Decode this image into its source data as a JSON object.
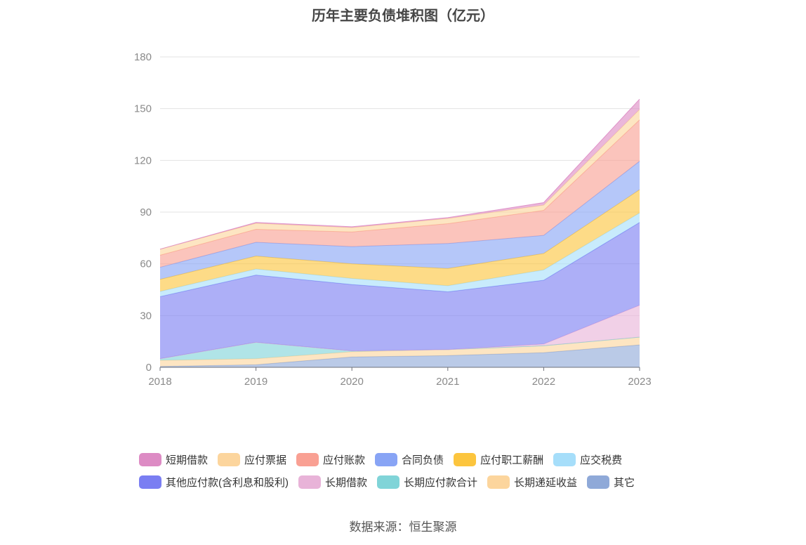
{
  "title": "历年主要负债堆积图（亿元）",
  "source": "数据来源：恒生聚源",
  "chart_data": {
    "type": "area",
    "stacked": true,
    "title": "历年主要负债堆积图（亿元）",
    "x": [
      "2018",
      "2019",
      "2020",
      "2021",
      "2022",
      "2023"
    ],
    "ylim": [
      0,
      180
    ],
    "yticks": [
      0,
      30,
      60,
      90,
      120,
      150,
      180
    ],
    "grid": true,
    "legend_position": "bottom",
    "series": [
      {
        "name": "其它",
        "color": "#8fa9d8",
        "values": [
          0.5,
          1.5,
          6.0,
          6.8,
          8.5,
          13.0
        ]
      },
      {
        "name": "长期递延收益",
        "color": "#fcd59d",
        "values": [
          3.5,
          3.5,
          3.0,
          3.5,
          4.0,
          4.5
        ]
      },
      {
        "name": "长期应付款合计",
        "color": "#80d4d8",
        "values": [
          1.0,
          9.5,
          0.5,
          0.0,
          0.0,
          0.0
        ]
      },
      {
        "name": "长期借款",
        "color": "#e8b3d8",
        "values": [
          0.0,
          0.0,
          0.0,
          0.0,
          1.0,
          18.5
        ]
      },
      {
        "name": "其他应付款(含利息和股利)",
        "color": "#7a7ef2",
        "values": [
          36.0,
          39.0,
          38.5,
          33.5,
          37.0,
          48.0
        ]
      },
      {
        "name": "应交税费",
        "color": "#a6defa",
        "values": [
          3.0,
          3.5,
          3.5,
          3.5,
          6.0,
          5.5
        ]
      },
      {
        "name": "应付职工薪酬",
        "color": "#fcc53e",
        "values": [
          7.0,
          7.5,
          8.5,
          10.0,
          9.5,
          13.5
        ]
      },
      {
        "name": "合同负债",
        "color": "#88a4f5",
        "values": [
          7.0,
          8.0,
          10.0,
          14.5,
          10.5,
          16.5
        ]
      },
      {
        "name": "应付账款",
        "color": "#f9a093",
        "values": [
          7.0,
          7.5,
          8.5,
          11.5,
          14.5,
          24.0
        ]
      },
      {
        "name": "应付票据",
        "color": "#fcd59d",
        "values": [
          3.5,
          3.5,
          2.5,
          3.0,
          3.0,
          6.0
        ]
      },
      {
        "name": "短期借款",
        "color": "#dd8bc4",
        "values": [
          0.0,
          0.5,
          0.5,
          0.5,
          1.5,
          6.0
        ]
      }
    ],
    "legend_order": [
      "短期借款",
      "应付票据",
      "应付账款",
      "合同负债",
      "应付职工薪酬",
      "应交税费",
      "其他应付款(含利息和股利)",
      "长期借款",
      "长期应付款合计",
      "长期递延收益",
      "其它"
    ]
  }
}
